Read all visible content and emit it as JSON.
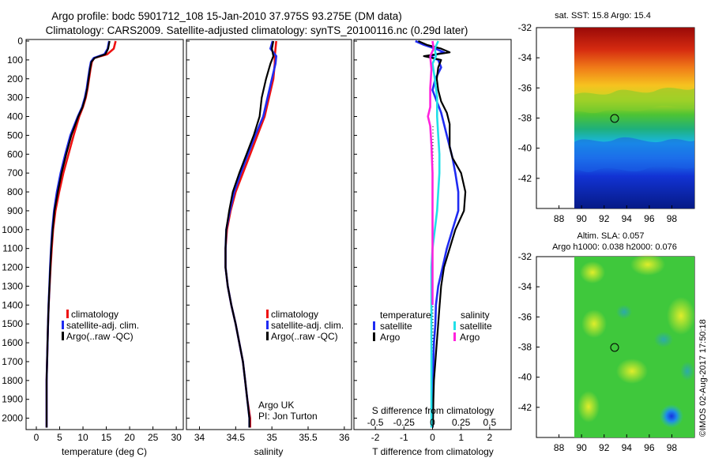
{
  "header": {
    "line1": "Argo profile: bodc 5901712_108 15-Jan-2010 37.975S 93.275E (DM data)",
    "line2": "Climatology: CARS2009. Satellite-adjusted climatology: synTS_20100116.nc (0.29d later)"
  },
  "colors": {
    "climatology": "#ee1111",
    "satellite": "#1f2bf2",
    "argo": "#000000",
    "s_satellite": "#22e0e8",
    "s_argo": "#ff22dd"
  },
  "depth_axis": {
    "ticks": [
      "0",
      "100",
      "200",
      "300",
      "400",
      "500",
      "600",
      "700",
      "800",
      "900",
      "1000",
      "1100",
      "1200",
      "1300",
      "1400",
      "1500",
      "1600",
      "1700",
      "1800",
      "1900",
      "2000"
    ],
    "range": [
      0,
      2060
    ]
  },
  "chart_data": [
    {
      "type": "line",
      "panel": "temperature",
      "xlabel": "temperature (deg C)",
      "xticks": [
        "0",
        "5",
        "10",
        "15",
        "20",
        "25",
        "30"
      ],
      "xlim": [
        -2.2,
        31.5
      ],
      "ylim": [
        2060,
        0
      ],
      "legend": [
        "climatology",
        "satellite-adj. clim.",
        "Argo(..raw -QC)"
      ],
      "series": [
        {
          "name": "climatology",
          "color_key": "climatology",
          "x": [
            17.0,
            16.6,
            15.2,
            12.4,
            11.9,
            11.6,
            11.3,
            11.0,
            10.6,
            10.0,
            9.2,
            8.0,
            6.9,
            5.8,
            4.9,
            4.1,
            3.6,
            3.3,
            3.05,
            2.85,
            2.65,
            2.5,
            2.4,
            2.3,
            2.2,
            2.2
          ],
          "y": [
            0,
            40,
            70,
            90,
            110,
            150,
            200,
            250,
            300,
            350,
            400,
            500,
            600,
            700,
            800,
            900,
            1000,
            1100,
            1200,
            1300,
            1400,
            1500,
            1600,
            1700,
            1800,
            2050
          ]
        },
        {
          "name": "satellite-adj. clim.",
          "color_key": "satellite",
          "x": [
            15.6,
            15.3,
            14.6,
            12.3,
            11.7,
            11.4,
            11.1,
            10.8,
            10.4,
            9.8,
            8.9,
            7.3,
            6.2,
            5.2,
            4.4,
            3.8,
            3.4,
            3.15,
            2.95,
            2.8,
            2.62,
            2.5,
            2.4,
            2.3,
            2.2,
            2.2
          ],
          "y": [
            0,
            40,
            70,
            90,
            110,
            150,
            200,
            250,
            300,
            350,
            400,
            500,
            600,
            700,
            800,
            900,
            1000,
            1100,
            1200,
            1300,
            1400,
            1500,
            1600,
            1700,
            1800,
            2050
          ]
        },
        {
          "name": "Argo(..raw -QC)",
          "color_key": "argo",
          "x": [
            15.7,
            15.4,
            14.8,
            12.5,
            11.8,
            11.5,
            11.2,
            10.9,
            10.5,
            9.9,
            9.0,
            7.5,
            6.4,
            5.4,
            4.6,
            3.9,
            3.5,
            3.2,
            3.0,
            2.82,
            2.64,
            2.5,
            2.4,
            2.3,
            2.2,
            2.2
          ],
          "y": [
            0,
            40,
            70,
            90,
            110,
            150,
            200,
            250,
            300,
            350,
            400,
            500,
            600,
            700,
            800,
            900,
            1000,
            1100,
            1200,
            1300,
            1400,
            1500,
            1600,
            1700,
            1800,
            2050
          ]
        }
      ]
    },
    {
      "type": "line",
      "panel": "salinity",
      "xlabel": "salinity",
      "xticks": [
        "34",
        "34.5",
        "35",
        "35.5",
        "36"
      ],
      "xlim": [
        33.82,
        36.1
      ],
      "ylim": [
        2060,
        0
      ],
      "legend": [
        "climatology",
        "satellite-adj. clim.",
        "Argo(..raw -QC)"
      ],
      "annotation": [
        "Argo UK",
        "PI: Jon Turton"
      ],
      "series": [
        {
          "name": "climatology",
          "color_key": "climatology",
          "x": [
            35.06,
            35.05,
            35.04,
            35.04,
            35.02,
            34.96,
            34.9,
            34.8,
            34.7,
            34.6,
            34.5,
            34.43,
            34.38,
            34.36,
            34.36,
            34.39,
            34.44,
            34.5,
            34.55,
            34.6,
            34.63,
            34.66,
            34.7,
            34.7
          ],
          "y": [
            0,
            40,
            80,
            120,
            200,
            300,
            400,
            500,
            600,
            700,
            800,
            900,
            1000,
            1100,
            1200,
            1300,
            1400,
            1500,
            1600,
            1700,
            1800,
            1900,
            2000,
            2050
          ]
        },
        {
          "name": "satellite-adj. clim.",
          "color_key": "satellite",
          "x": [
            35.01,
            34.98,
            35.06,
            35.05,
            35.0,
            34.94,
            34.88,
            34.77,
            34.67,
            34.57,
            34.48,
            34.42,
            34.37,
            34.36,
            34.36,
            34.39,
            34.44,
            34.5,
            34.55,
            34.6,
            34.63,
            34.66,
            34.69,
            34.69
          ],
          "y": [
            0,
            40,
            80,
            120,
            200,
            300,
            400,
            500,
            600,
            700,
            800,
            900,
            1000,
            1100,
            1200,
            1300,
            1400,
            1500,
            1600,
            1700,
            1800,
            1900,
            2000,
            2050
          ]
        },
        {
          "name": "Argo(..raw -QC)",
          "color_key": "argo",
          "x": [
            35.02,
            35.0,
            35.02,
            34.98,
            34.92,
            34.86,
            34.83,
            34.75,
            34.65,
            34.55,
            34.46,
            34.41,
            34.37,
            34.36,
            34.36,
            34.39,
            34.44,
            34.5,
            34.55,
            34.6,
            34.63,
            34.66,
            34.69,
            34.69
          ],
          "y": [
            0,
            40,
            80,
            120,
            200,
            300,
            400,
            500,
            600,
            700,
            800,
            900,
            1000,
            1100,
            1200,
            1300,
            1400,
            1500,
            1600,
            1700,
            1800,
            1900,
            2000,
            2050
          ]
        }
      ]
    },
    {
      "type": "line",
      "panel": "differences",
      "xlabel": "T difference from climatology",
      "xticks": [
        "-2",
        "-1",
        "0",
        "1",
        "2"
      ],
      "xlim": [
        -2.75,
        2.75
      ],
      "s_label": "S difference from climatology",
      "s_ticks": [
        "-0.5",
        "-0.25",
        "0",
        "0.25",
        "0.5"
      ],
      "s_lim": [
        -0.6875,
        0.6875
      ],
      "ylim": [
        2060,
        0
      ],
      "legend_titles": [
        "temperature",
        "salinity"
      ],
      "legend_temperature": [
        "satellite",
        "Argo"
      ],
      "legend_salinity": [
        "satellite",
        "Argo"
      ],
      "series": [
        {
          "name": "temperature satellite",
          "axis": "T",
          "color_key": "satellite",
          "x": [
            -0.6,
            -0.3,
            0.1,
            0.4,
            -0.1,
            0.2,
            0.3,
            0.1,
            0.0,
            0.15,
            0.3,
            0.4,
            0.5,
            0.6,
            0.7,
            0.8,
            0.9,
            0.9,
            0.7,
            0.5,
            0.35,
            0.2,
            0.12,
            0.1,
            0.05,
            0.03,
            0.02,
            0.0,
            0.0,
            0.0
          ],
          "y": [
            0,
            20,
            40,
            60,
            80,
            100,
            140,
            200,
            260,
            320,
            380,
            440,
            500,
            560,
            620,
            700,
            800,
            900,
            1000,
            1100,
            1200,
            1300,
            1400,
            1500,
            1600,
            1700,
            1800,
            1900,
            2000,
            2050
          ]
        },
        {
          "name": "temperature Argo",
          "axis": "T",
          "color_key": "argo",
          "x": [
            -0.5,
            -0.2,
            0.3,
            0.6,
            -0.3,
            0.3,
            0.2,
            0.15,
            0.2,
            0.3,
            0.5,
            0.6,
            0.6,
            0.6,
            0.7,
            1.0,
            1.15,
            1.1,
            0.8,
            0.6,
            0.4,
            0.3,
            0.25,
            0.2,
            0.15,
            0.1,
            0.05,
            0.03,
            0.02,
            0.0
          ],
          "y": [
            0,
            20,
            40,
            60,
            80,
            100,
            140,
            200,
            260,
            320,
            380,
            440,
            500,
            560,
            620,
            700,
            800,
            900,
            1000,
            1100,
            1200,
            1300,
            1400,
            1500,
            1600,
            1700,
            1800,
            1900,
            2000,
            2050
          ]
        },
        {
          "name": "salinity satellite",
          "axis": "S",
          "color_key": "s_satellite",
          "x": [
            0.05,
            0.02,
            0.03,
            0.0,
            0.02,
            0.04,
            0.04,
            0.05,
            0.06,
            0.06,
            0.05,
            0.04,
            0.02,
            0.0,
            -0.01,
            -0.01,
            -0.01,
            -0.01,
            -0.01,
            -0.01
          ],
          "y": [
            0,
            40,
            80,
            120,
            200,
            300,
            400,
            500,
            600,
            700,
            800,
            900,
            1000,
            1100,
            1200,
            1300,
            1400,
            1600,
            1800,
            2050
          ]
        },
        {
          "name": "salinity Argo",
          "axis": "S",
          "color_key": "s_argo",
          "x": [
            0.0,
            0.01,
            -0.02,
            -0.01,
            -0.02,
            -0.02,
            -0.04,
            -0.02,
            -0.01,
            0.0,
            0.0,
            0.0,
            0.0,
            0.0
          ],
          "y": [
            0,
            40,
            80,
            150,
            250,
            350,
            400,
            450,
            550,
            700,
            900,
            1100,
            1300,
            1400
          ]
        }
      ]
    }
  ],
  "maps": {
    "lon_ticks": [
      "88",
      "90",
      "92",
      "94",
      "96",
      "98"
    ],
    "lat_ticks": [
      "-32",
      "-34",
      "-36",
      "-38",
      "-40",
      "-42"
    ],
    "top_title": "sat. SST: 15.8  Argo: 15.4",
    "bottom_title1": "Altim. SLA: 0.057",
    "bottom_title2": "Argo h1000: 0.038  h2000: 0.076",
    "float_position": {
      "lon": 93.275,
      "lat": -37.975
    }
  },
  "stamp": "©IMOS 02-Aug-2017 17:50:18"
}
